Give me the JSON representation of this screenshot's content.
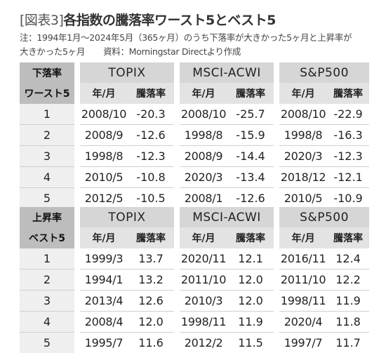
{
  "title_bracket": "[図表3]",
  "title_main": "各指数の騰落率ワースト5とベスト5",
  "note_line1": "注：1994年1月〜2024年5月（365ヶ月）のうち下落率が大きかった5ヶ月と上昇率が",
  "note_line2": "大きかった5ヶ月",
  "source": "資料：Morningstar Directより作成",
  "indices": [
    "TOPIX",
    "MSCI-ACWI",
    "S&P500"
  ],
  "col_date": "年/月",
  "col_change": "騰落率",
  "worst": {
    "label1": "下落率",
    "label2": "ワースト5",
    "rows": [
      {
        "rank": "1",
        "v": [
          [
            "2008/10",
            "-20.3"
          ],
          [
            "2008/10",
            "-25.7"
          ],
          [
            "2008/10",
            "-22.9"
          ]
        ]
      },
      {
        "rank": "2",
        "v": [
          [
            "2008/9",
            "-12.6"
          ],
          [
            "1998/8",
            "-15.9"
          ],
          [
            "1998/8",
            "-16.3"
          ]
        ]
      },
      {
        "rank": "3",
        "v": [
          [
            "1998/8",
            "-12.3"
          ],
          [
            "2008/9",
            "-14.4"
          ],
          [
            "2020/3",
            "-12.3"
          ]
        ]
      },
      {
        "rank": "4",
        "v": [
          [
            "2010/5",
            "-10.8"
          ],
          [
            "2020/3",
            "-13.4"
          ],
          [
            "2018/12",
            "-12.1"
          ]
        ]
      },
      {
        "rank": "5",
        "v": [
          [
            "2012/5",
            "-10.5"
          ],
          [
            "2008/1",
            "-12.6"
          ],
          [
            "2010/5",
            "-10.9"
          ]
        ]
      }
    ]
  },
  "best": {
    "label1": "上昇率",
    "label2": "ベスト5",
    "rows": [
      {
        "rank": "1",
        "v": [
          [
            "1999/3",
            "13.7"
          ],
          [
            "2020/11",
            "12.1"
          ],
          [
            "2016/11",
            "12.4"
          ]
        ]
      },
      {
        "rank": "2",
        "v": [
          [
            "1994/1",
            "13.2"
          ],
          [
            "2011/10",
            "12.0"
          ],
          [
            "2011/10",
            "12.2"
          ]
        ]
      },
      {
        "rank": "3",
        "v": [
          [
            "2013/4",
            "12.6"
          ],
          [
            "2010/3",
            "12.0"
          ],
          [
            "1998/11",
            "11.9"
          ]
        ]
      },
      {
        "rank": "4",
        "v": [
          [
            "2008/4",
            "12.0"
          ],
          [
            "1998/11",
            "11.9"
          ],
          [
            "2020/4",
            "11.8"
          ]
        ]
      },
      {
        "rank": "5",
        "v": [
          [
            "1995/7",
            "11.6"
          ],
          [
            "2012/2",
            "11.5"
          ],
          [
            "1997/7",
            "11.7"
          ]
        ]
      }
    ]
  },
  "colors": {
    "negative": "#c8102e",
    "header_dark": "#bdbdbd",
    "header_mid": "#d6d6d6",
    "header_light": "#e3e3e3",
    "rank_bg": "#efefef"
  }
}
